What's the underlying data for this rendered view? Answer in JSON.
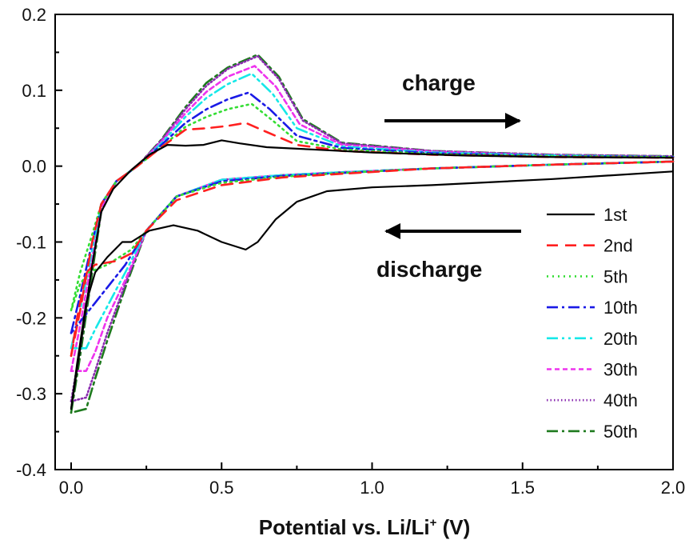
{
  "chart_data": {
    "type": "line",
    "xlabel": "Potential vs. Li/Li",
    "xlabel_sup": "+",
    "xlabel_unit": " (V)",
    "ylabel": "",
    "xlim": [
      -0.05,
      2.0
    ],
    "ylim": [
      -0.4,
      0.2
    ],
    "xticks": [
      "0.0",
      "0.5",
      "1.0",
      "1.5",
      "2.0"
    ],
    "yticks": [
      "-0.4",
      "-0.3",
      "-0.2",
      "-0.1",
      "0.0",
      "0.1",
      "0.2"
    ],
    "grid": false,
    "legend_position": "right",
    "annotations": [
      {
        "text": "charge",
        "arrow": "right",
        "x": 1.1,
        "y": 0.06
      },
      {
        "text": "discharge",
        "arrow": "left",
        "x": 1.1,
        "y": -0.08
      }
    ],
    "series": [
      {
        "name": "1st",
        "color": "#000000",
        "dash": "solid",
        "upper": [
          [
            0.0,
            -0.32
          ],
          [
            0.03,
            -0.24
          ],
          [
            0.07,
            -0.13
          ],
          [
            0.1,
            -0.06
          ],
          [
            0.14,
            -0.03
          ],
          [
            0.2,
            -0.005
          ],
          [
            0.26,
            0.015
          ],
          [
            0.32,
            0.028
          ],
          [
            0.38,
            0.027
          ],
          [
            0.44,
            0.028
          ],
          [
            0.5,
            0.034
          ],
          [
            0.56,
            0.03
          ],
          [
            0.65,
            0.025
          ],
          [
            0.8,
            0.022
          ],
          [
            1.0,
            0.018
          ],
          [
            1.3,
            0.014
          ],
          [
            1.6,
            0.012
          ],
          [
            2.0,
            0.011
          ]
        ],
        "lower": [
          [
            2.0,
            -0.007
          ],
          [
            1.6,
            -0.017
          ],
          [
            1.2,
            -0.025
          ],
          [
            1.0,
            -0.028
          ],
          [
            0.85,
            -0.033
          ],
          [
            0.75,
            -0.047
          ],
          [
            0.68,
            -0.07
          ],
          [
            0.62,
            -0.1
          ],
          [
            0.58,
            -0.11
          ],
          [
            0.5,
            -0.1
          ],
          [
            0.42,
            -0.085
          ],
          [
            0.34,
            -0.078
          ],
          [
            0.26,
            -0.085
          ],
          [
            0.2,
            -0.1
          ],
          [
            0.17,
            -0.1
          ],
          [
            0.12,
            -0.12
          ],
          [
            0.08,
            -0.14
          ],
          [
            0.05,
            -0.18
          ],
          [
            0.02,
            -0.26
          ],
          [
            0.0,
            -0.32
          ]
        ]
      },
      {
        "name": "2nd",
        "color": "#ff2020",
        "dash": "14,9",
        "upper": [
          [
            0.0,
            -0.25
          ],
          [
            0.03,
            -0.19
          ],
          [
            0.07,
            -0.1
          ],
          [
            0.1,
            -0.05
          ],
          [
            0.15,
            -0.02
          ],
          [
            0.22,
            0.0
          ],
          [
            0.3,
            0.025
          ],
          [
            0.38,
            0.048
          ],
          [
            0.45,
            0.05
          ],
          [
            0.52,
            0.053
          ],
          [
            0.58,
            0.057
          ],
          [
            0.65,
            0.045
          ],
          [
            0.75,
            0.028
          ],
          [
            0.9,
            0.02
          ],
          [
            1.2,
            0.015
          ],
          [
            1.6,
            0.012
          ],
          [
            2.0,
            0.011
          ]
        ],
        "lower": [
          [
            2.0,
            0.006
          ],
          [
            1.6,
            0.002
          ],
          [
            1.2,
            -0.003
          ],
          [
            0.9,
            -0.01
          ],
          [
            0.7,
            -0.015
          ],
          [
            0.5,
            -0.025
          ],
          [
            0.35,
            -0.045
          ],
          [
            0.25,
            -0.085
          ],
          [
            0.2,
            -0.115
          ],
          [
            0.15,
            -0.125
          ],
          [
            0.08,
            -0.13
          ],
          [
            0.05,
            -0.14
          ],
          [
            0.02,
            -0.2
          ],
          [
            0.0,
            -0.25
          ]
        ]
      },
      {
        "name": "5th",
        "color": "#33dd33",
        "dash": "2,5",
        "upper": [
          [
            0.0,
            -0.19
          ],
          [
            0.03,
            -0.14
          ],
          [
            0.07,
            -0.09
          ],
          [
            0.1,
            -0.05
          ],
          [
            0.15,
            -0.02
          ],
          [
            0.22,
            0.0
          ],
          [
            0.3,
            0.025
          ],
          [
            0.38,
            0.052
          ],
          [
            0.45,
            0.065
          ],
          [
            0.52,
            0.075
          ],
          [
            0.6,
            0.082
          ],
          [
            0.67,
            0.06
          ],
          [
            0.75,
            0.033
          ],
          [
            0.9,
            0.022
          ],
          [
            1.2,
            0.016
          ],
          [
            1.6,
            0.013
          ],
          [
            2.0,
            0.012
          ]
        ],
        "lower": [
          [
            2.0,
            0.006
          ],
          [
            1.6,
            0.002
          ],
          [
            1.2,
            -0.003
          ],
          [
            0.9,
            -0.009
          ],
          [
            0.7,
            -0.014
          ],
          [
            0.5,
            -0.022
          ],
          [
            0.35,
            -0.04
          ],
          [
            0.25,
            -0.085
          ],
          [
            0.2,
            -0.11
          ],
          [
            0.12,
            -0.13
          ],
          [
            0.06,
            -0.14
          ],
          [
            0.03,
            -0.155
          ],
          [
            0.0,
            -0.19
          ]
        ]
      },
      {
        "name": "10th",
        "color": "#1a1ae6",
        "dash": "14,5,3,5",
        "upper": [
          [
            0.0,
            -0.22
          ],
          [
            0.03,
            -0.17
          ],
          [
            0.07,
            -0.1
          ],
          [
            0.1,
            -0.05
          ],
          [
            0.15,
            -0.02
          ],
          [
            0.22,
            0.0
          ],
          [
            0.3,
            0.028
          ],
          [
            0.38,
            0.057
          ],
          [
            0.45,
            0.075
          ],
          [
            0.52,
            0.088
          ],
          [
            0.59,
            0.097
          ],
          [
            0.66,
            0.075
          ],
          [
            0.75,
            0.04
          ],
          [
            0.9,
            0.024
          ],
          [
            1.2,
            0.017
          ],
          [
            1.6,
            0.013
          ],
          [
            2.0,
            0.012
          ]
        ],
        "lower": [
          [
            2.0,
            0.006
          ],
          [
            1.6,
            0.002
          ],
          [
            1.2,
            -0.003
          ],
          [
            0.9,
            -0.009
          ],
          [
            0.7,
            -0.013
          ],
          [
            0.5,
            -0.02
          ],
          [
            0.35,
            -0.04
          ],
          [
            0.25,
            -0.085
          ],
          [
            0.18,
            -0.13
          ],
          [
            0.12,
            -0.16
          ],
          [
            0.08,
            -0.18
          ],
          [
            0.04,
            -0.2
          ],
          [
            0.0,
            -0.22
          ]
        ]
      },
      {
        "name": "20th",
        "color": "#16e8e8",
        "dash": "14,5,3,5,3,5",
        "upper": [
          [
            0.0,
            -0.24
          ],
          [
            0.03,
            -0.19
          ],
          [
            0.07,
            -0.11
          ],
          [
            0.1,
            -0.05
          ],
          [
            0.15,
            -0.02
          ],
          [
            0.22,
            0.0
          ],
          [
            0.3,
            0.03
          ],
          [
            0.38,
            0.065
          ],
          [
            0.45,
            0.09
          ],
          [
            0.52,
            0.108
          ],
          [
            0.6,
            0.122
          ],
          [
            0.67,
            0.095
          ],
          [
            0.75,
            0.05
          ],
          [
            0.9,
            0.026
          ],
          [
            1.2,
            0.018
          ],
          [
            1.6,
            0.014
          ],
          [
            2.0,
            0.012
          ]
        ],
        "lower": [
          [
            2.0,
            0.006
          ],
          [
            1.6,
            0.002
          ],
          [
            1.2,
            -0.003
          ],
          [
            0.9,
            -0.008
          ],
          [
            0.7,
            -0.012
          ],
          [
            0.5,
            -0.018
          ],
          [
            0.35,
            -0.04
          ],
          [
            0.25,
            -0.085
          ],
          [
            0.18,
            -0.14
          ],
          [
            0.12,
            -0.185
          ],
          [
            0.08,
            -0.215
          ],
          [
            0.05,
            -0.24
          ],
          [
            0.0,
            -0.24
          ]
        ]
      },
      {
        "name": "30th",
        "color": "#ee33ee",
        "dash": "6,4",
        "upper": [
          [
            0.0,
            -0.27
          ],
          [
            0.03,
            -0.21
          ],
          [
            0.07,
            -0.12
          ],
          [
            0.1,
            -0.055
          ],
          [
            0.15,
            -0.02
          ],
          [
            0.22,
            0.0
          ],
          [
            0.3,
            0.032
          ],
          [
            0.38,
            0.07
          ],
          [
            0.45,
            0.098
          ],
          [
            0.52,
            0.118
          ],
          [
            0.61,
            0.132
          ],
          [
            0.68,
            0.105
          ],
          [
            0.76,
            0.055
          ],
          [
            0.9,
            0.028
          ],
          [
            1.2,
            0.019
          ],
          [
            1.6,
            0.014
          ],
          [
            2.0,
            0.012
          ]
        ],
        "lower": [
          [
            2.0,
            0.006
          ],
          [
            1.6,
            0.002
          ],
          [
            1.2,
            -0.003
          ],
          [
            0.9,
            -0.008
          ],
          [
            0.7,
            -0.012
          ],
          [
            0.5,
            -0.018
          ],
          [
            0.35,
            -0.04
          ],
          [
            0.25,
            -0.085
          ],
          [
            0.18,
            -0.15
          ],
          [
            0.12,
            -0.2
          ],
          [
            0.08,
            -0.245
          ],
          [
            0.05,
            -0.27
          ],
          [
            0.0,
            -0.27
          ]
        ]
      },
      {
        "name": "40th",
        "color": "#8a2bb0",
        "dash": "1.5,3",
        "upper": [
          [
            0.0,
            -0.31
          ],
          [
            0.03,
            -0.24
          ],
          [
            0.07,
            -0.13
          ],
          [
            0.1,
            -0.06
          ],
          [
            0.15,
            -0.02
          ],
          [
            0.22,
            0.0
          ],
          [
            0.3,
            0.034
          ],
          [
            0.38,
            0.075
          ],
          [
            0.45,
            0.106
          ],
          [
            0.52,
            0.128
          ],
          [
            0.62,
            0.145
          ],
          [
            0.69,
            0.115
          ],
          [
            0.77,
            0.06
          ],
          [
            0.9,
            0.03
          ],
          [
            1.2,
            0.02
          ],
          [
            1.6,
            0.015
          ],
          [
            2.0,
            0.013
          ]
        ],
        "lower": [
          [
            2.0,
            0.006
          ],
          [
            1.6,
            0.002
          ],
          [
            1.2,
            -0.003
          ],
          [
            0.9,
            -0.008
          ],
          [
            0.7,
            -0.012
          ],
          [
            0.5,
            -0.018
          ],
          [
            0.35,
            -0.04
          ],
          [
            0.25,
            -0.085
          ],
          [
            0.18,
            -0.155
          ],
          [
            0.12,
            -0.22
          ],
          [
            0.08,
            -0.27
          ],
          [
            0.05,
            -0.305
          ],
          [
            0.0,
            -0.31
          ]
        ]
      },
      {
        "name": "50th",
        "color": "#1e7a1e",
        "dash": "14,5,3,5",
        "upper": [
          [
            0.0,
            -0.325
          ],
          [
            0.03,
            -0.25
          ],
          [
            0.07,
            -0.14
          ],
          [
            0.1,
            -0.06
          ],
          [
            0.15,
            -0.02
          ],
          [
            0.22,
            0.0
          ],
          [
            0.3,
            0.035
          ],
          [
            0.38,
            0.078
          ],
          [
            0.45,
            0.11
          ],
          [
            0.52,
            0.13
          ],
          [
            0.62,
            0.147
          ],
          [
            0.69,
            0.118
          ],
          [
            0.77,
            0.062
          ],
          [
            0.9,
            0.031
          ],
          [
            1.2,
            0.02
          ],
          [
            1.6,
            0.015
          ],
          [
            2.0,
            0.013
          ]
        ],
        "lower": [
          [
            2.0,
            0.006
          ],
          [
            1.6,
            0.002
          ],
          [
            1.2,
            -0.003
          ],
          [
            0.9,
            -0.008
          ],
          [
            0.7,
            -0.012
          ],
          [
            0.5,
            -0.018
          ],
          [
            0.35,
            -0.04
          ],
          [
            0.25,
            -0.085
          ],
          [
            0.18,
            -0.16
          ],
          [
            0.12,
            -0.23
          ],
          [
            0.08,
            -0.28
          ],
          [
            0.05,
            -0.32
          ],
          [
            0.0,
            -0.325
          ]
        ]
      }
    ]
  }
}
